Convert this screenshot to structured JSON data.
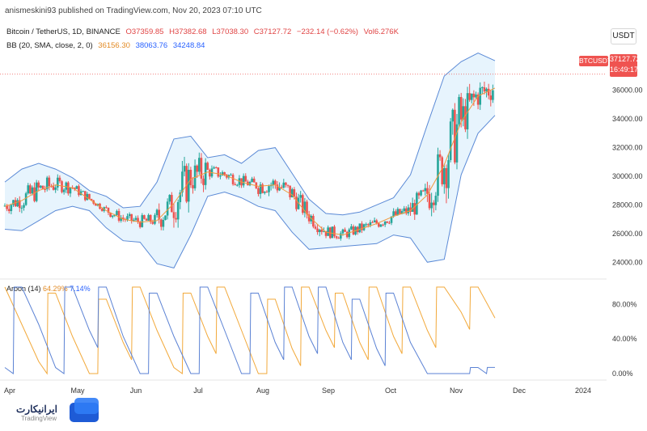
{
  "header": "anismeskini93 published on TradingView.com, Nov 20, 2023 07:10 UTC",
  "legend": {
    "symbol": "Bitcoin / TetherUS, 1D, BINANCE",
    "open": "O37359.85",
    "high": "H37382.68",
    "low": "L37038.30",
    "close": "C37127.72",
    "change": "−232.14 (−0.62%)",
    "vol": "Vol6.276K",
    "bb_label": "BB (20, SMA, close, 2, 0)",
    "bb_mid": "36156.30",
    "bb_up": "38063.76",
    "bb_low": "34248.84"
  },
  "aroon": {
    "label": "Aroon (14)",
    "up": "64.29%",
    "down": "7.14%"
  },
  "currency": "USDT",
  "ticker_tag": "BTCUSDT",
  "price_tag": {
    "price": "37127.72",
    "countdown": "16:49:17"
  },
  "watermark": "TradingView",
  "logo_text": "ایرانیکارت",
  "colors": {
    "up": "#26a69a",
    "down": "#ef5350",
    "bb_mid": "#f09a3e",
    "bb_band": "#5b8ad6",
    "bb_fill": "#e3f2fd",
    "aroon_up": "#f2a93b",
    "aroon_down": "#5b82d4"
  },
  "chart_data": [
    {
      "type": "line",
      "title": "Bitcoin / TetherUS, 1D, BINANCE",
      "ylim": [
        23000,
        39200
      ],
      "yticks": [
        "24000.00",
        "26000.00",
        "28000.00",
        "30000.00",
        "32000.00",
        "34000.00",
        "36000.00"
      ],
      "xticks": [
        "Apr",
        "May",
        "Jun",
        "Jul",
        "Aug",
        "Sep",
        "Oct",
        "Nov",
        "Dec",
        "2024"
      ],
      "series": [
        {
          "name": "BB basis",
          "values": [
            27900,
            28300,
            29000,
            29400,
            29200,
            28400,
            27600,
            27000,
            26800,
            26900,
            28100,
            29800,
            30300,
            30100,
            29600,
            29300,
            29400,
            28700,
            27200,
            26100,
            25900,
            26300,
            26700,
            27200,
            27600,
            28700,
            30800,
            33800,
            35600,
            36156
          ]
        },
        {
          "name": "BB upper",
          "values": [
            29600,
            30500,
            30900,
            30500,
            29900,
            29000,
            28600,
            27800,
            27900,
            29600,
            32600,
            32800,
            31300,
            31500,
            30900,
            31800,
            32000,
            30200,
            28400,
            27400,
            27300,
            27500,
            28000,
            28500,
            30100,
            33600,
            37000,
            38000,
            38600,
            38064
          ]
        },
        {
          "name": "BB lower",
          "values": [
            26300,
            26200,
            26900,
            27600,
            27900,
            27600,
            26400,
            25500,
            25400,
            23900,
            23600,
            25900,
            28600,
            28900,
            28500,
            27900,
            27600,
            26100,
            24900,
            25000,
            25100,
            25200,
            25300,
            25900,
            25700,
            24000,
            24200,
            30100,
            33000,
            34249
          ]
        }
      ]
    },
    {
      "type": "line",
      "title": "Aroon (14)",
      "ylim": [
        0,
        100
      ],
      "yticks": [
        "0.00%",
        "40.00%",
        "80.00%"
      ],
      "series": [
        {
          "name": "Aroon Up",
          "values": [
            100,
            57,
            14,
            93,
            43,
            0,
            86,
            36,
            100,
            50,
            7,
            93,
            43,
            100,
            50,
            0,
            86,
            29,
            100,
            50,
            93,
            36,
            100,
            43,
            100,
            50,
            100,
            71,
            100,
            64.29
          ]
        },
        {
          "name": "Aroon Down",
          "values": [
            7,
            100,
            57,
            7,
            100,
            50,
            100,
            43,
            0,
            93,
            43,
            0,
            100,
            50,
            0,
            93,
            36,
            100,
            43,
            100,
            36,
            86,
            29,
            93,
            36,
            0,
            0,
            0,
            7,
            7.14
          ]
        }
      ]
    }
  ]
}
